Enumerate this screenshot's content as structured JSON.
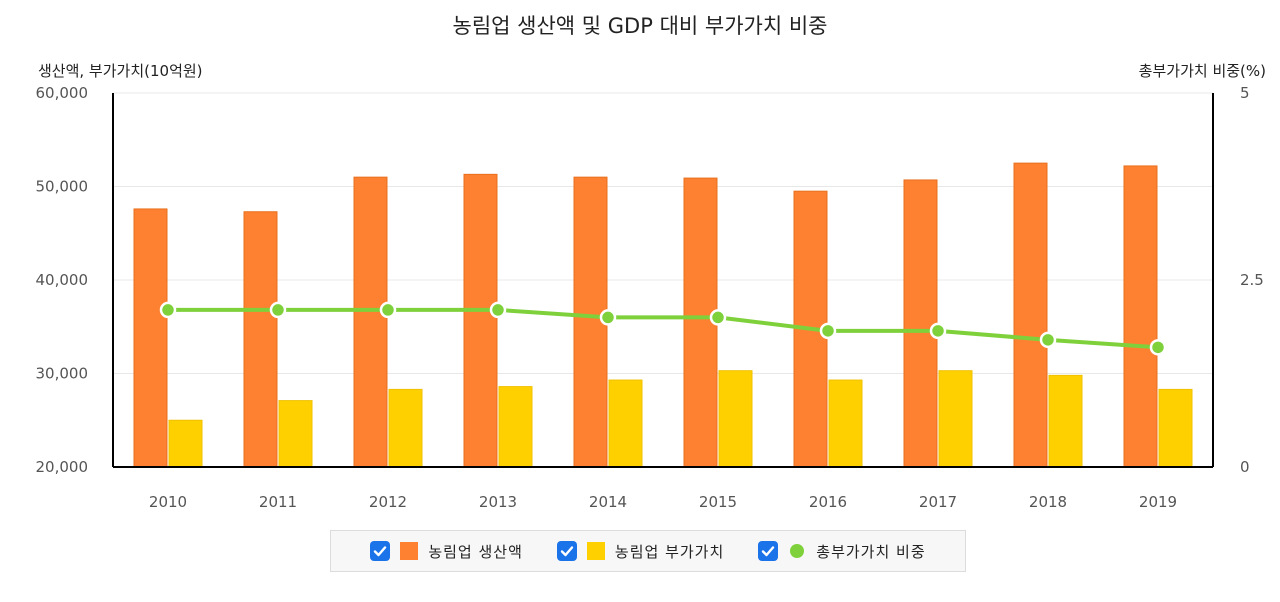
{
  "chart_data": {
    "type": "bar",
    "title": "농림업 생산액 및 GDP 대비 부가가치 비중",
    "ylabel_left": "생산액, 부가가치(10억원)",
    "ylabel_right": "총부가가치 비중(%)",
    "categories": [
      "2010",
      "2011",
      "2012",
      "2013",
      "2014",
      "2015",
      "2016",
      "2017",
      "2018",
      "2019"
    ],
    "ylim_left": [
      20000,
      60000
    ],
    "yticks_left": [
      "20,000",
      "30,000",
      "40,000",
      "50,000",
      "60,000"
    ],
    "ylim_right": [
      0,
      5
    ],
    "yticks_right": [
      "0",
      "2.5",
      "5"
    ],
    "grid": true,
    "legend_position": "bottom",
    "series": [
      {
        "name": "농림업 생산액",
        "type": "bar",
        "axis": "left",
        "color": "#fd8130",
        "values": [
          47600,
          47300,
          51000,
          51300,
          51000,
          50900,
          49500,
          50700,
          52500,
          52200
        ]
      },
      {
        "name": "농림업 부가가치",
        "type": "bar",
        "axis": "left",
        "color": "#ffd000",
        "values": [
          25000,
          27100,
          28300,
          28600,
          29300,
          30300,
          29300,
          30300,
          29800,
          28300
        ]
      },
      {
        "name": "총부가가치 비중",
        "type": "line",
        "axis": "right",
        "color": "#7fd13b",
        "values": [
          2.1,
          2.1,
          2.1,
          2.1,
          2.0,
          2.0,
          1.82,
          1.82,
          1.7,
          1.6
        ]
      }
    ]
  },
  "legend": {
    "items": [
      {
        "label": "농림업 생산액",
        "color": "#fd8130",
        "marker": "square",
        "checked": true
      },
      {
        "label": "농림업 부가가치",
        "color": "#ffd000",
        "marker": "square",
        "checked": true
      },
      {
        "label": "총부가가치 비중",
        "color": "#7fd13b",
        "marker": "circle",
        "checked": true
      }
    ],
    "check_icon": "checkmark-icon"
  }
}
